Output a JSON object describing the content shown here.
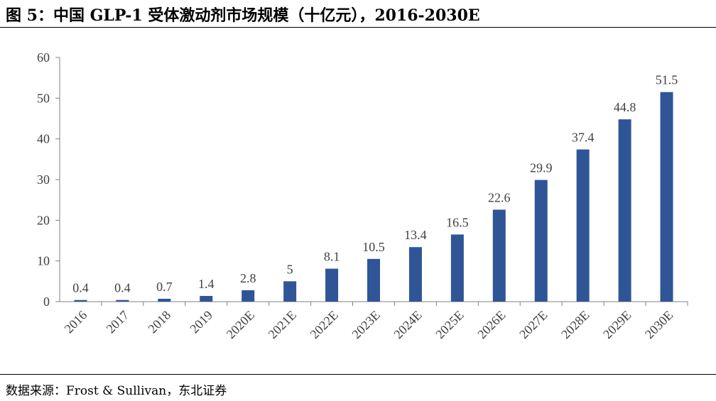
{
  "title": "图 5：中国 GLP-1 受体激动剂市场规模（十亿元），2016-2030E",
  "source": "数据来源：Frost & Sullivan，东北证券",
  "colors": {
    "bar": "#2F5597",
    "axis": "#808080",
    "text": "#404040"
  },
  "chart_data": {
    "type": "bar",
    "title": "",
    "xlabel": "",
    "ylabel": "",
    "categories": [
      "2016",
      "2017",
      "2018",
      "2019",
      "2020E",
      "2021E",
      "2022E",
      "2023E",
      "2024E",
      "2025E",
      "2026E",
      "2027E",
      "2028E",
      "2029E",
      "2030E"
    ],
    "values": [
      0.4,
      0.4,
      0.7,
      1.4,
      2.8,
      5,
      8.1,
      10.5,
      13.4,
      16.5,
      22.6,
      29.9,
      37.4,
      44.8,
      51.5
    ],
    "data_labels": [
      "0.4",
      "0.4",
      "0.7",
      "1.4",
      "2.8",
      "5",
      "8.1",
      "10.5",
      "13.4",
      "16.5",
      "22.6",
      "29.9",
      "37.4",
      "44.8",
      "51.5"
    ],
    "ylim": [
      0,
      60
    ],
    "yticks": [
      "0",
      "10",
      "20",
      "30",
      "40",
      "50",
      "60"
    ],
    "grid": false,
    "legend": "none"
  }
}
